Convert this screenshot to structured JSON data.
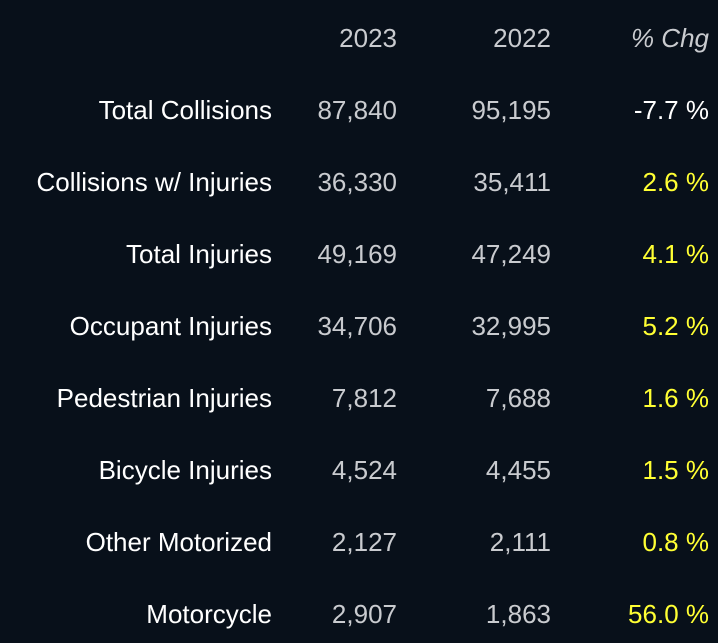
{
  "header": {
    "col_2023": "2023",
    "col_2022": "2022",
    "col_pct": "% Chg"
  },
  "colors": {
    "background": "#08101a",
    "label": "#ffffff",
    "value": "#c9cbcf",
    "pct_negative": "#ffffff",
    "pct_positive": "#ffff33"
  },
  "rows": [
    {
      "label": "Total Collisions",
      "v2023": "87,840",
      "v2022": "95,195",
      "pct": "-7.7 %",
      "trend": "down"
    },
    {
      "label": "Collisions w/ Injuries",
      "v2023": "36,330",
      "v2022": "35,411",
      "pct": "2.6 %",
      "trend": "up"
    },
    {
      "label": "Total Injuries",
      "v2023": "49,169",
      "v2022": "47,249",
      "pct": "4.1 %",
      "trend": "up"
    },
    {
      "label": "Occupant Injuries",
      "v2023": "34,706",
      "v2022": "32,995",
      "pct": "5.2 %",
      "trend": "up"
    },
    {
      "label": "Pedestrian Injuries",
      "v2023": "7,812",
      "v2022": "7,688",
      "pct": "1.6 %",
      "trend": "up"
    },
    {
      "label": "Bicycle Injuries",
      "v2023": "4,524",
      "v2022": "4,455",
      "pct": "1.5 %",
      "trend": "up"
    },
    {
      "label": "Other Motorized",
      "v2023": "2,127",
      "v2022": "2,111",
      "pct": "0.8 %",
      "trend": "up"
    },
    {
      "label": "Motorcycle",
      "v2023": "2,907",
      "v2022": "1,863",
      "pct": "56.0 %",
      "trend": "up"
    }
  ]
}
